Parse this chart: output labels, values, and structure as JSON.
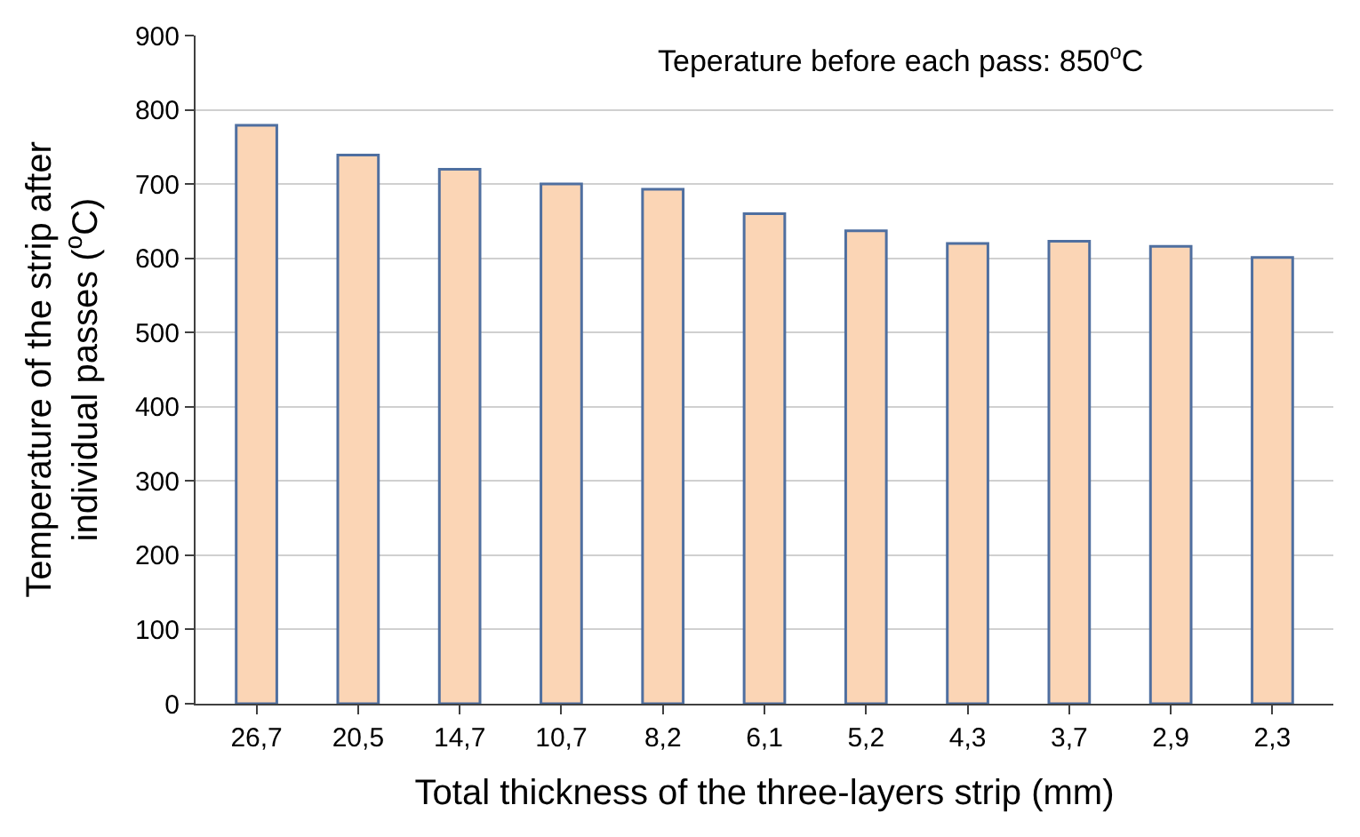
{
  "chart_data": {
    "type": "bar",
    "xlabel": "Total thickness of the three-layers strip (mm)",
    "ylabel": "Temperature of the strip after\nindividual passes ($^{o}$C)",
    "annotations": [
      "Teperature before each pass: 850$^{o}$C"
    ],
    "categories": [
      "26,7",
      "20,5",
      "14,7",
      "10,7",
      "8,2",
      "6,1",
      "5,2",
      "4,3",
      "3,7",
      "2,9",
      "2,3"
    ],
    "values": [
      779,
      739,
      720,
      700,
      693,
      660,
      637,
      620,
      623,
      616,
      601
    ],
    "color": "#fbd5b5",
    "ylim": [
      0,
      900
    ],
    "yticks": [
      0,
      100,
      200,
      300,
      400,
      500,
      600,
      700,
      800,
      900
    ],
    "grid": "y"
  }
}
